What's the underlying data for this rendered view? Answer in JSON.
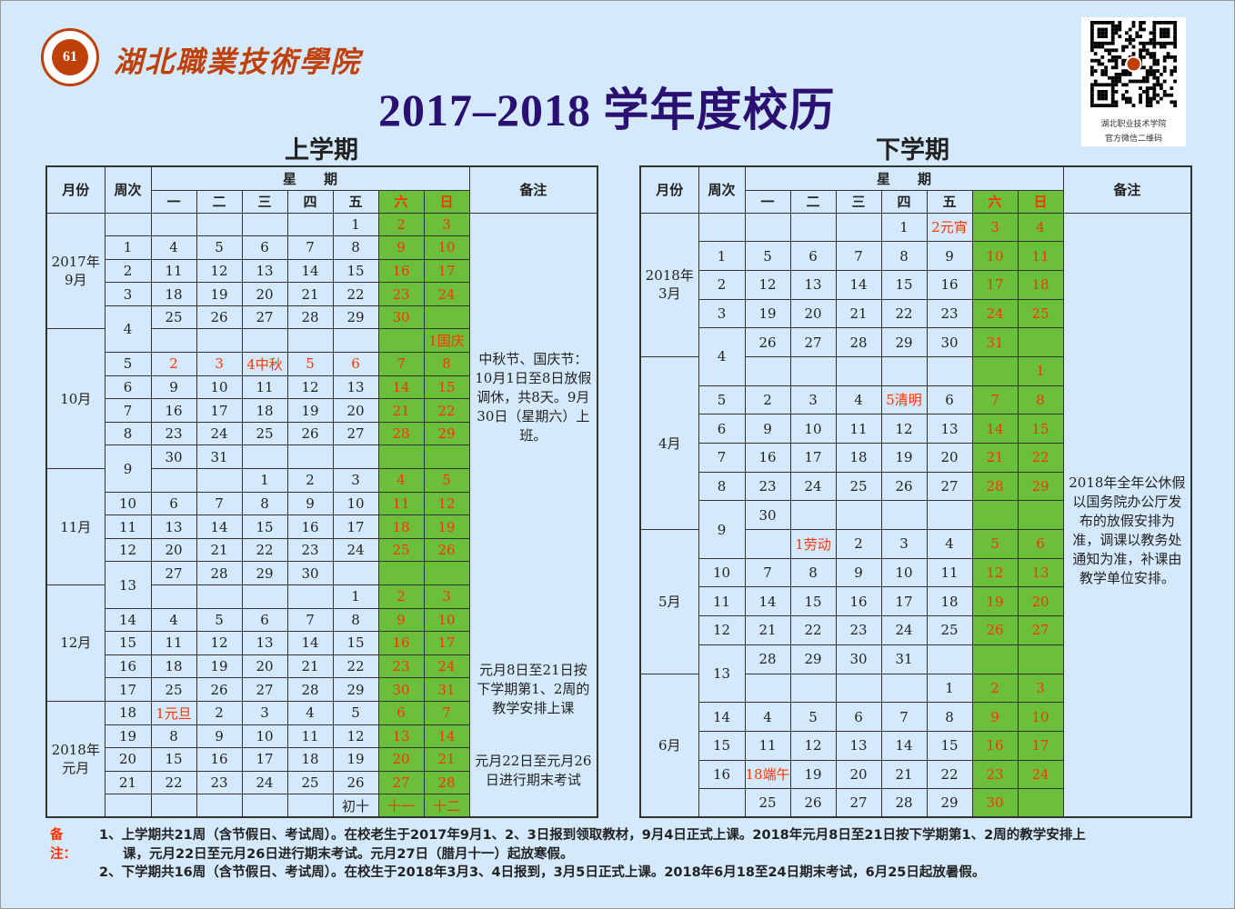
{
  "header": {
    "school_name": "湖北職業技術學院",
    "logo_text": "61",
    "title": "2017–2018 学年度校历",
    "qr_caption_1": "湖北职业技术学院",
    "qr_caption_2": "官方微信二维码"
  },
  "colors": {
    "background": "#d4eafc",
    "weekend": "#6cbf3a",
    "holiday_text": "#ff3300",
    "title": "#2a1070",
    "logo": "#c0400a"
  },
  "headers": {
    "month": "月份",
    "week": "周次",
    "weekday": "星　　期",
    "days": [
      "一",
      "二",
      "三",
      "四",
      "五",
      "六",
      "日"
    ],
    "remarks": "备注"
  },
  "term1": {
    "title": "上学期",
    "months": [
      {
        "label": "2017年\n9月",
        "rows": 5
      },
      {
        "label": "10月",
        "rows": 6
      },
      {
        "label": "11月",
        "rows": 5
      },
      {
        "label": "12月",
        "rows": 5
      },
      {
        "label": "2018年\n元月",
        "rows": 5
      }
    ],
    "rows": [
      {
        "week": "",
        "days": [
          "",
          "",
          "",
          "",
          "1",
          "2",
          "3"
        ]
      },
      {
        "week": "1",
        "days": [
          "4",
          "5",
          "6",
          "7",
          "8",
          "9",
          "10"
        ]
      },
      {
        "week": "2",
        "days": [
          "11",
          "12",
          "13",
          "14",
          "15",
          "16",
          "17"
        ]
      },
      {
        "week": "3",
        "days": [
          "18",
          "19",
          "20",
          "21",
          "22",
          "23",
          "24"
        ]
      },
      {
        "week": "4",
        "span": 2,
        "days": [
          "25",
          "26",
          "27",
          "28",
          "29",
          "30",
          ""
        ]
      },
      {
        "week": null,
        "days": [
          "",
          "",
          "",
          "",
          "",
          "",
          "1国庆"
        ]
      },
      {
        "week": "5",
        "days": [
          "2",
          "3",
          "4中秋",
          "5",
          "6",
          "7",
          "8"
        ],
        "red": [
          0,
          1,
          2,
          3,
          4
        ]
      },
      {
        "week": "6",
        "days": [
          "9",
          "10",
          "11",
          "12",
          "13",
          "14",
          "15"
        ]
      },
      {
        "week": "7",
        "days": [
          "16",
          "17",
          "18",
          "19",
          "20",
          "21",
          "22"
        ]
      },
      {
        "week": "8",
        "days": [
          "23",
          "24",
          "25",
          "26",
          "27",
          "28",
          "29"
        ]
      },
      {
        "week": "9",
        "span": 2,
        "days": [
          "30",
          "31",
          "",
          "",
          "",
          "",
          ""
        ]
      },
      {
        "week": null,
        "days": [
          "",
          "",
          "1",
          "2",
          "3",
          "4",
          "5"
        ]
      },
      {
        "week": "10",
        "days": [
          "6",
          "7",
          "8",
          "9",
          "10",
          "11",
          "12"
        ]
      },
      {
        "week": "11",
        "days": [
          "13",
          "14",
          "15",
          "16",
          "17",
          "18",
          "19"
        ]
      },
      {
        "week": "12",
        "days": [
          "20",
          "21",
          "22",
          "23",
          "24",
          "25",
          "26"
        ]
      },
      {
        "week": "13",
        "span": 2,
        "days": [
          "27",
          "28",
          "29",
          "30",
          "",
          "",
          ""
        ]
      },
      {
        "week": null,
        "days": [
          "",
          "",
          "",
          "",
          "1",
          "2",
          "3"
        ]
      },
      {
        "week": "14",
        "days": [
          "4",
          "5",
          "6",
          "7",
          "8",
          "9",
          "10"
        ]
      },
      {
        "week": "15",
        "days": [
          "11",
          "12",
          "13",
          "14",
          "15",
          "16",
          "17"
        ]
      },
      {
        "week": "16",
        "days": [
          "18",
          "19",
          "20",
          "21",
          "22",
          "23",
          "24"
        ]
      },
      {
        "week": "17",
        "days": [
          "25",
          "26",
          "27",
          "28",
          "29",
          "30",
          "31"
        ]
      },
      {
        "week": "18",
        "days": [
          "1元旦",
          "2",
          "3",
          "4",
          "5",
          "6",
          "7"
        ],
        "red": [
          0
        ]
      },
      {
        "week": "19",
        "days": [
          "8",
          "9",
          "10",
          "11",
          "12",
          "13",
          "14"
        ]
      },
      {
        "week": "20",
        "days": [
          "15",
          "16",
          "17",
          "18",
          "19",
          "20",
          "21"
        ]
      },
      {
        "week": "21",
        "days": [
          "22",
          "23",
          "24",
          "25",
          "26",
          "27",
          "28"
        ]
      },
      {
        "week": "",
        "days": [
          "",
          "",
          "",
          "",
          "初十",
          "十一",
          "十二"
        ]
      }
    ],
    "remarks": [
      "中秋节、国庆节：10月1日至8日放假调休，共8天。9月30日（星期六）上班。",
      "元月8日至21日按下学期第1、2周的教学安排上课",
      "元月22日至元月26日进行期末考试"
    ]
  },
  "term2": {
    "title": "下学期",
    "months": [
      {
        "label": "2018年\n3月",
        "rows": 5
      },
      {
        "label": "4月",
        "rows": 6
      },
      {
        "label": "5月",
        "rows": 5
      },
      {
        "label": "6月",
        "rows": 5
      }
    ],
    "rows": [
      {
        "week": "",
        "days": [
          "",
          "",
          "",
          "1",
          "2元宵",
          "3",
          "4"
        ],
        "red": [
          4
        ]
      },
      {
        "week": "1",
        "days": [
          "5",
          "6",
          "7",
          "8",
          "9",
          "10",
          "11"
        ]
      },
      {
        "week": "2",
        "days": [
          "12",
          "13",
          "14",
          "15",
          "16",
          "17",
          "18"
        ]
      },
      {
        "week": "3",
        "days": [
          "19",
          "20",
          "21",
          "22",
          "23",
          "24",
          "25"
        ]
      },
      {
        "week": "4",
        "span": 2,
        "days": [
          "26",
          "27",
          "28",
          "29",
          "30",
          "31",
          ""
        ]
      },
      {
        "week": null,
        "days": [
          "",
          "",
          "",
          "",
          "",
          "",
          "1"
        ]
      },
      {
        "week": "5",
        "days": [
          "2",
          "3",
          "4",
          "5清明",
          "6",
          "7",
          "8"
        ],
        "red": [
          3
        ]
      },
      {
        "week": "6",
        "days": [
          "9",
          "10",
          "11",
          "12",
          "13",
          "14",
          "15"
        ]
      },
      {
        "week": "7",
        "days": [
          "16",
          "17",
          "18",
          "19",
          "20",
          "21",
          "22"
        ]
      },
      {
        "week": "8",
        "days": [
          "23",
          "24",
          "25",
          "26",
          "27",
          "28",
          "29"
        ]
      },
      {
        "week": "9",
        "span": 2,
        "days": [
          "30",
          "",
          "",
          "",
          "",
          "",
          ""
        ]
      },
      {
        "week": null,
        "days": [
          "",
          "1劳动",
          "2",
          "3",
          "4",
          "5",
          "6"
        ],
        "red": [
          1
        ]
      },
      {
        "week": "10",
        "days": [
          "7",
          "8",
          "9",
          "10",
          "11",
          "12",
          "13"
        ]
      },
      {
        "week": "11",
        "days": [
          "14",
          "15",
          "16",
          "17",
          "18",
          "19",
          "20"
        ]
      },
      {
        "week": "12",
        "days": [
          "21",
          "22",
          "23",
          "24",
          "25",
          "26",
          "27"
        ]
      },
      {
        "week": "13",
        "span": 2,
        "days": [
          "28",
          "29",
          "30",
          "31",
          "",
          "",
          ""
        ]
      },
      {
        "week": null,
        "days": [
          "",
          "",
          "",
          "",
          "1",
          "2",
          "3"
        ]
      },
      {
        "week": "14",
        "days": [
          "4",
          "5",
          "6",
          "7",
          "8",
          "9",
          "10"
        ]
      },
      {
        "week": "15",
        "days": [
          "11",
          "12",
          "13",
          "14",
          "15",
          "16",
          "17"
        ]
      },
      {
        "week": "16",
        "days": [
          "18端午",
          "19",
          "20",
          "21",
          "22",
          "23",
          "24"
        ],
        "red": [
          0
        ]
      },
      {
        "week": "",
        "days": [
          "25",
          "26",
          "27",
          "28",
          "29",
          "30",
          ""
        ]
      }
    ],
    "remarks": [
      "2018年全年公休假以国务院办公厅发布的放假安排为准，调课以教务处通知为准，补课由教学单位安排。"
    ]
  },
  "notes": {
    "label": "备注：",
    "line1a": "1、上学期共21周（含节假日、考试周）。在校老生于2017年9月1、2、3日报到领取教材，9月4日正式上课。2018年元月8日至21日按下学期第1、2周的教学安排上",
    "line1b": "课，元月22日至元月26日进行期末考试。元月27日（腊月十一）起放寒假。",
    "line2": "2、下学期共16周（含节假日、考试周）。在校生于2018年3月3、4日报到，3月5日正式上课。2018年6月18至24日期末考试，6月25日起放暑假。"
  }
}
